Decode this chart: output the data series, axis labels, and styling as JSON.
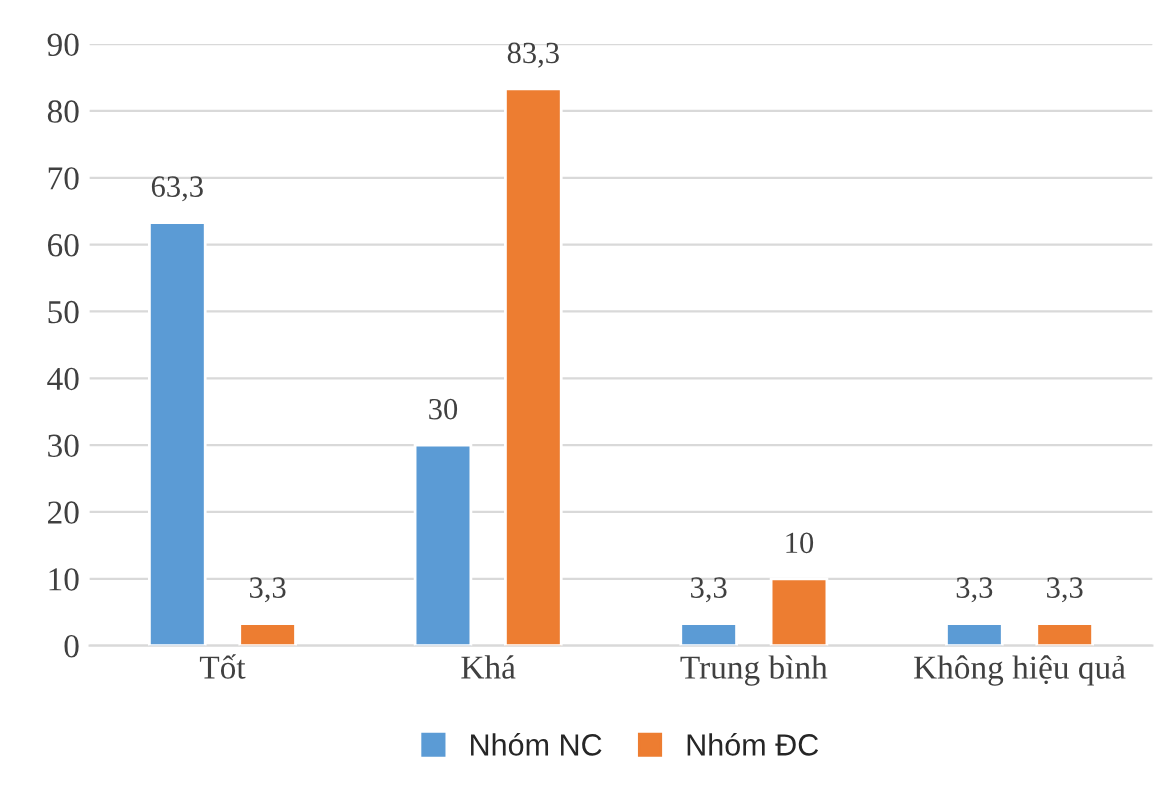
{
  "chart_data": {
    "type": "bar",
    "categories": [
      "Tốt",
      "Khá",
      "Trung bình",
      "Không hiệu quả"
    ],
    "series": [
      {
        "name": "Nhóm NC",
        "color": "#5b9bd5",
        "values": [
          63.3,
          30,
          3.3,
          3.3
        ],
        "value_labels": [
          "63,3",
          "30",
          "3,3",
          "3,3"
        ]
      },
      {
        "name": "Nhóm ĐC",
        "color": "#ed7d31",
        "values": [
          3.3,
          83.3,
          10,
          3.3
        ],
        "value_labels": [
          "3,3",
          "83,3",
          "10",
          "3,3"
        ]
      }
    ],
    "ylim": [
      0,
      90
    ],
    "yticks": [
      0,
      10,
      20,
      30,
      40,
      50,
      60,
      70,
      80,
      90
    ],
    "grid": "y",
    "legend": "bottom"
  }
}
